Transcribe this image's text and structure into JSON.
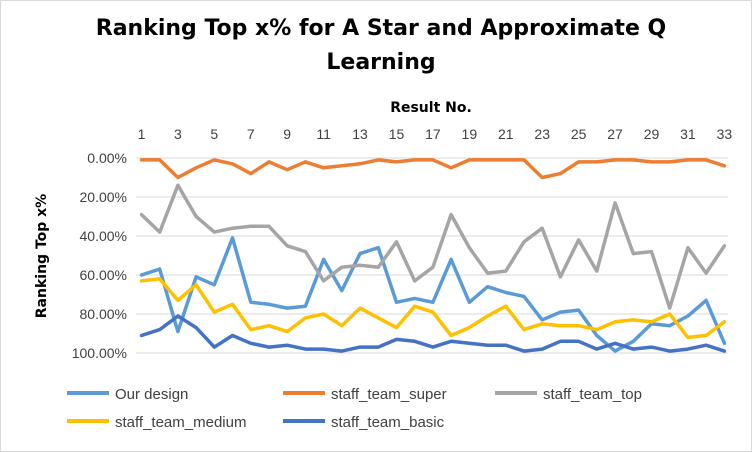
{
  "chart_data": {
    "type": "line",
    "title_line1": "Ranking Top x% for A Star and Approximate Q",
    "title_line2": "Learning",
    "xlabel": "Result No.",
    "ylabel": "Ranking Top x%",
    "x_axis_position": "top",
    "y_reversed": true,
    "ylim": [
      0,
      100
    ],
    "x": [
      1,
      2,
      3,
      4,
      5,
      6,
      7,
      8,
      9,
      10,
      11,
      12,
      13,
      14,
      15,
      16,
      17,
      18,
      19,
      20,
      21,
      22,
      23,
      24,
      25,
      26,
      27,
      28,
      29,
      30,
      31,
      32,
      33
    ],
    "x_tick_labels": [
      "1",
      "3",
      "5",
      "7",
      "9",
      "11",
      "13",
      "15",
      "17",
      "19",
      "21",
      "23",
      "25",
      "27",
      "29",
      "31",
      "33"
    ],
    "y_tick_labels": [
      "0.00%",
      "20.00%",
      "40.00%",
      "60.00%",
      "80.00%",
      "100.00%"
    ],
    "grid": true,
    "legend_placement": "bottom",
    "series": [
      {
        "name": "Our design",
        "color": "#5B9BD5",
        "values": [
          60,
          57,
          89,
          61,
          65,
          41,
          74,
          75,
          77,
          76,
          52,
          68,
          49,
          46,
          74,
          72,
          74,
          52,
          74,
          66,
          69,
          71,
          83,
          79,
          78,
          91,
          99,
          94,
          85,
          86,
          81,
          73,
          95
        ]
      },
      {
        "name": "staff_team_super",
        "color": "#ED7D31",
        "values": [
          1,
          1,
          10,
          5,
          1,
          3,
          8,
          2,
          6,
          2,
          5,
          4,
          3,
          1,
          2,
          1,
          1,
          5,
          1,
          1,
          1,
          1,
          10,
          8,
          2,
          2,
          1,
          1,
          2,
          2,
          1,
          1,
          4
        ]
      },
      {
        "name": "staff_team_top",
        "color": "#A5A5A5",
        "values": [
          29,
          38,
          14,
          30,
          38,
          36,
          35,
          35,
          45,
          48,
          63,
          56,
          55,
          56,
          43,
          63,
          56,
          29,
          46,
          59,
          58,
          43,
          36,
          61,
          42,
          58,
          23,
          49,
          48,
          77,
          46,
          59,
          45
        ]
      },
      {
        "name": "staff_team_medium",
        "color": "#FFC000",
        "values": [
          63,
          62,
          73,
          65,
          79,
          75,
          88,
          86,
          89,
          82,
          80,
          86,
          77,
          82,
          87,
          76,
          79,
          91,
          87,
          81,
          76,
          88,
          85,
          86,
          86,
          88,
          84,
          83,
          84,
          80,
          92,
          91,
          84
        ]
      },
      {
        "name": "staff_team_basic",
        "color": "#4472C4",
        "values": [
          91,
          88,
          81,
          87,
          97,
          91,
          95,
          97,
          96,
          98,
          98,
          99,
          97,
          97,
          93,
          94,
          97,
          94,
          95,
          96,
          96,
          99,
          98,
          94,
          94,
          98,
          95,
          98,
          97,
          99,
          98,
          96,
          99
        ]
      }
    ]
  }
}
